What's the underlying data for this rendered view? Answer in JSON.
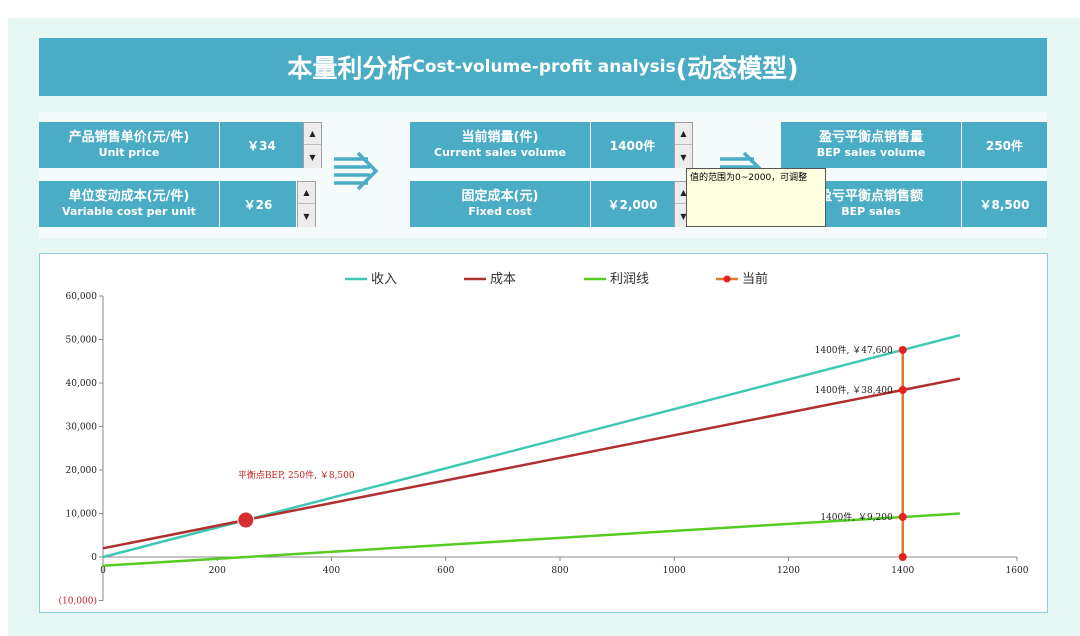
{
  "header": {
    "title_cn": "本量利分析",
    "title_en": "Cost-volume-profit analysis",
    "title_suffix": "(动态模型)"
  },
  "inputs": {
    "unit_price": {
      "label_cn": "产品销售单价(元/件)",
      "label_en": "Unit price",
      "value": "￥34"
    },
    "variable_cost": {
      "label_cn": "单位变动成本(元/件)",
      "label_en": "Variable cost per unit",
      "value": "￥26"
    },
    "current_volume": {
      "label_cn": "当前销量(件)",
      "label_en": "Current sales volume",
      "value": "1400件"
    },
    "fixed_cost": {
      "label_cn": "固定成本(元)",
      "label_en": "Fixed cost",
      "value": "￥2,000"
    }
  },
  "outputs": {
    "bep_volume": {
      "label_cn": "盈亏平衡点销售量",
      "label_en": "BEP sales volume",
      "value": "250件"
    },
    "bep_sales": {
      "label_cn": "盈亏平衡点销售额",
      "label_en": "BEP  sales",
      "value": "￥8,500"
    }
  },
  "tooltip": {
    "text": "值的范围为0~2000，可调整"
  },
  "colors": {
    "header": "#4bacc6",
    "revenue": "#3ec8b4",
    "cost": "#b03030",
    "profit": "#55cc22",
    "current": "#e07a2a",
    "point": "#e82020"
  },
  "chart_data": {
    "type": "line",
    "legend": [
      "收入",
      "成本",
      "利润线",
      "当前"
    ],
    "x": [
      0,
      1500
    ],
    "series": [
      {
        "name": "收入",
        "values": [
          0,
          51000
        ]
      },
      {
        "name": "成本",
        "values": [
          2000,
          41000
        ]
      },
      {
        "name": "利润线",
        "values": [
          -2000,
          10000
        ]
      }
    ],
    "current": {
      "x": 1400,
      "revenue": 47600,
      "cost": 38400,
      "profit": 9200
    },
    "bep": {
      "x": 250,
      "y": 8500
    },
    "annotations": {
      "bep": "平衡点BEP, 250件, ￥8,500",
      "revenue": "1400件, ￥47,600",
      "cost": "1400件, ￥38,400",
      "profit": "1400件, ￥9,200"
    },
    "xlim": [
      0,
      1600
    ],
    "ylim": [
      -10000,
      60000
    ],
    "xticks": [
      "0",
      "200",
      "400",
      "600",
      "800",
      "1000",
      "1200",
      "1400",
      "1600"
    ],
    "yticks": [
      "(10,000)",
      "0",
      "10,000",
      "20,000",
      "30,000",
      "40,000",
      "50,000",
      "60,000"
    ]
  }
}
